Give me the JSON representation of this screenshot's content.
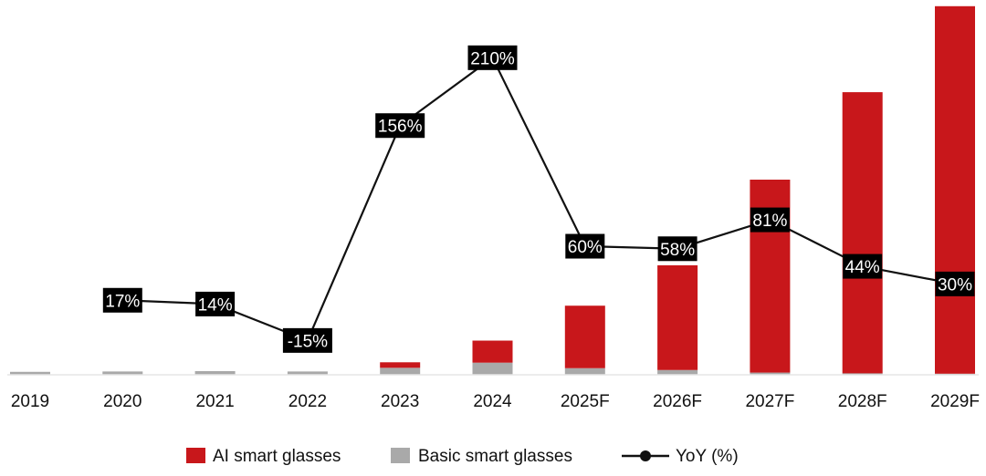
{
  "chart_data": {
    "type": "bar",
    "stacked": true,
    "categories": [
      "2019",
      "2020",
      "2021",
      "2022",
      "2023",
      "2024",
      "2025F",
      "2026F",
      "2027F",
      "2028F",
      "2029F"
    ],
    "series": [
      {
        "name": "AI smart glasses",
        "kind": "bar",
        "color": "#c8171b",
        "values": [
          0,
          0,
          0,
          0,
          1.5,
          6.0,
          17.0,
          28.5,
          52.5,
          76.5,
          100.0
        ]
      },
      {
        "name": "Basic smart glasses",
        "kind": "bar",
        "color": "#a9a9a9",
        "values": [
          0.8,
          0.9,
          1.0,
          0.9,
          1.9,
          3.3,
          1.8,
          1.3,
          0.6,
          0.4,
          0.3
        ]
      },
      {
        "name": "YoY (%)",
        "kind": "line",
        "color": "#111111",
        "values": [
          null,
          17,
          14,
          -15,
          156,
          210,
          60,
          58,
          81,
          44,
          30
        ],
        "labels": [
          null,
          "17%",
          "14%",
          "-15%",
          "156%",
          "210%",
          "60%",
          "58%",
          "81%",
          "44%",
          "30%"
        ]
      }
    ],
    "legend": [
      "AI smart glasses",
      "Basic smart glasses",
      "YoY (%)"
    ],
    "legend_position": "bottom",
    "grid": false,
    "y_axis_visible": false,
    "title": "",
    "xlabel": "",
    "ylabel": ""
  }
}
